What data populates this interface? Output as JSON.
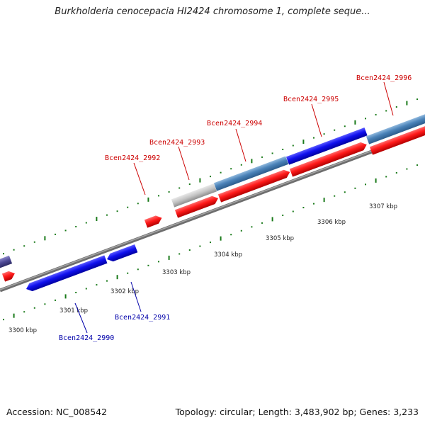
{
  "title": "Burkholderia cenocepacia HI2424 chromosome 1, complete seque...",
  "footer": {
    "accession": "Accession: NC_008542",
    "summary": "Topology: circular; Length: 3,483,902 bp; Genes: 3,233"
  },
  "colors": {
    "forward_label": "#cc0000",
    "reverse_label": "#0000aa",
    "tick": "#1a7a1a",
    "ruler_text": "#222222"
  },
  "ruler_labels": [
    "3300 kbp",
    "3301 kbp",
    "3302 kbp",
    "3303 kbp",
    "3304 kbp",
    "3305 kbp",
    "3306 kbp",
    "3307 kbp"
  ],
  "gene_labels": [
    {
      "text": "Bcen2424_2990",
      "strand": "reverse"
    },
    {
      "text": "Bcen2424_2991",
      "strand": "reverse"
    },
    {
      "text": "Bcen2424_2992",
      "strand": "forward"
    },
    {
      "text": "Bcen2424_2993",
      "strand": "forward"
    },
    {
      "text": "Bcen2424_2994",
      "strand": "forward"
    },
    {
      "text": "Bcen2424_2995",
      "strand": "forward"
    },
    {
      "text": "Bcen2424_2996",
      "strand": "forward"
    }
  ]
}
